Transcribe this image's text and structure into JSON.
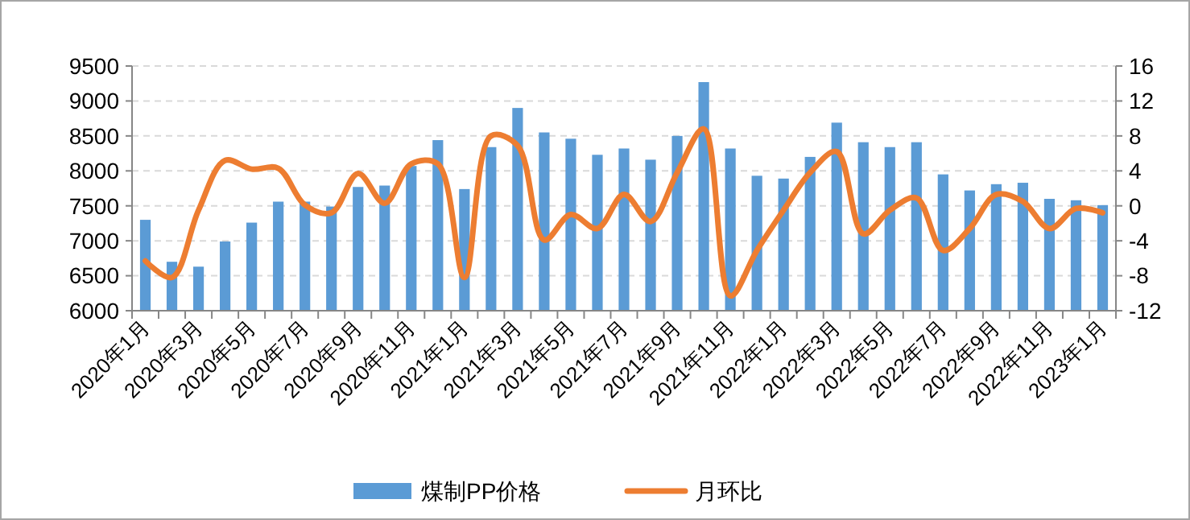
{
  "chart_data": {
    "type": "bar",
    "categories": [
      "2020年1月",
      null,
      "2020年3月",
      null,
      "2020年5月",
      null,
      "2020年7月",
      null,
      "2020年9月",
      null,
      "2020年11月",
      null,
      "2021年1月",
      null,
      "2021年3月",
      null,
      "2021年5月",
      null,
      "2021年7月",
      null,
      "2021年9月",
      null,
      "2021年11月",
      null,
      "2022年1月",
      null,
      "2022年3月",
      null,
      "2022年5月",
      null,
      "2022年7月",
      null,
      "2022年9月",
      null,
      "2022年11月",
      null,
      "2023年1月"
    ],
    "series": [
      {
        "name": "煤制PP价格",
        "color": "#5b9bd5",
        "values": [
          7300,
          6700,
          6630,
          6990,
          7260,
          7560,
          7560,
          7490,
          7770,
          7790,
          8070,
          8440,
          7740,
          8340,
          8900,
          8550,
          8460,
          8230,
          8320,
          8160,
          8500,
          9270,
          8320,
          7930,
          7890,
          8200,
          8690,
          8410,
          8340,
          8410,
          7950,
          7720,
          7810,
          7830,
          7600,
          7580,
          7510
        ]
      },
      {
        "name": "月环比",
        "type": "line",
        "axis": "y2",
        "color": "#ed7d31",
        "values": [
          -6.3,
          -8.2,
          -0.5,
          5.2,
          4.2,
          4.3,
          0.1,
          -0.8,
          3.7,
          0.3,
          4.8,
          4.8,
          -8.2,
          8.0,
          6.9,
          -3.9,
          -1.0,
          -2.6,
          1.3,
          -1.8,
          3.8,
          8.8,
          -10.3,
          -5.1,
          -0.5,
          3.8,
          6.2,
          -3.2,
          -0.5,
          0.9,
          -5.1,
          -2.6,
          1.3,
          0.5,
          -2.6,
          -0.3,
          -0.8
        ]
      }
    ],
    "ylim": [
      6000,
      9500
    ],
    "yticks": [
      6000,
      6500,
      7000,
      7500,
      8000,
      8500,
      9000,
      9500
    ],
    "y2lim": [
      -12,
      16
    ],
    "y2ticks": [
      -12,
      -8,
      -4,
      0,
      4,
      8,
      12,
      16
    ],
    "grid": "y",
    "legend": "bottom",
    "marker": "none"
  }
}
